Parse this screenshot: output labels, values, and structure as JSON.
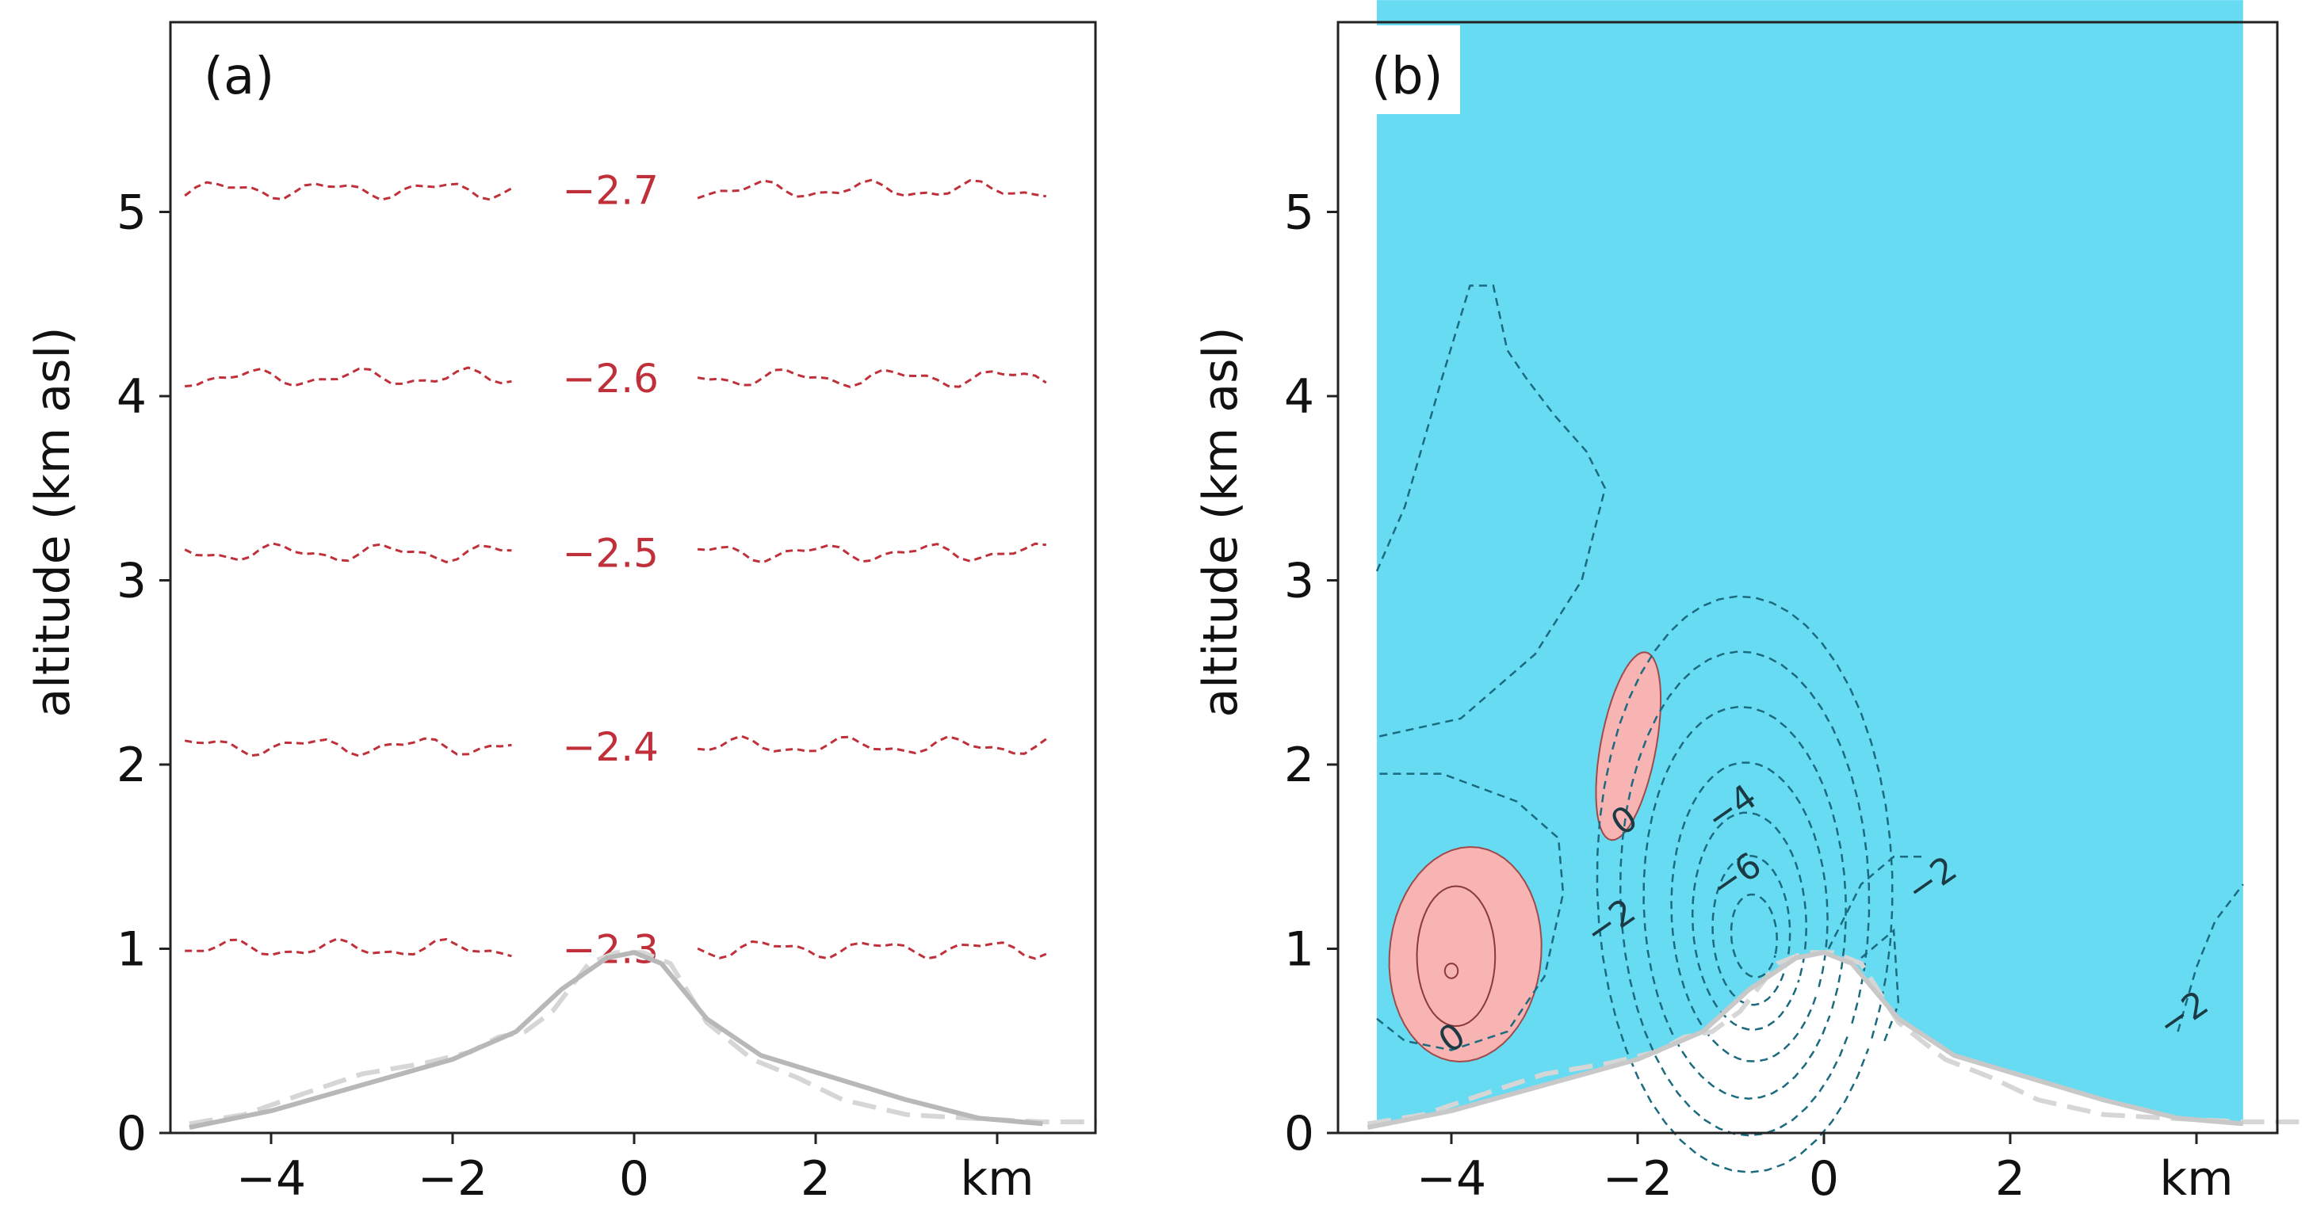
{
  "chart_data": [
    {
      "panel": "(a)",
      "type": "contour",
      "ylabel": "altitude (km asl)",
      "xlabel": "km",
      "xlim": [
        -5,
        5.2
      ],
      "ylim": [
        0,
        6
      ],
      "xticks": [
        -4,
        -2,
        0,
        2
      ],
      "xtick_labels": [
        "−4",
        "−2",
        "0",
        "2"
      ],
      "yticks": [
        0,
        1,
        2,
        3,
        4,
        5
      ],
      "ytick_labels": [
        "0",
        "1",
        "2",
        "3",
        "4",
        "5"
      ],
      "contour_color": "#c0303a",
      "contours": [
        {
          "label": "−2.3",
          "level": -2.3,
          "alt": 1.0
        },
        {
          "label": "−2.4",
          "level": -2.4,
          "alt": 2.1
        },
        {
          "label": "−2.5",
          "level": -2.5,
          "alt": 3.15
        },
        {
          "label": "−2.6",
          "level": -2.6,
          "alt": 4.1
        },
        {
          "label": "−2.7",
          "level": -2.7,
          "alt": 5.12
        }
      ],
      "terrain_color": "#b8b8b8",
      "terrain_smooth": [
        [
          -4.9,
          0.03
        ],
        [
          -4,
          0.12
        ],
        [
          -3,
          0.26
        ],
        [
          -2,
          0.4
        ],
        [
          -1.3,
          0.55
        ],
        [
          -0.8,
          0.78
        ],
        [
          -0.3,
          0.95
        ],
        [
          0,
          0.98
        ],
        [
          0.3,
          0.92
        ],
        [
          0.8,
          0.62
        ],
        [
          1.4,
          0.42
        ],
        [
          2.2,
          0.3
        ],
        [
          3,
          0.18
        ],
        [
          3.8,
          0.08
        ],
        [
          4.5,
          0.05
        ]
      ],
      "terrain_raw": [
        [
          -4.9,
          0.05
        ],
        [
          -4.3,
          0.1
        ],
        [
          -3.6,
          0.22
        ],
        [
          -3,
          0.32
        ],
        [
          -2.3,
          0.38
        ],
        [
          -1.8,
          0.44
        ],
        [
          -1.5,
          0.52
        ],
        [
          -1.2,
          0.55
        ],
        [
          -0.9,
          0.66
        ],
        [
          -0.5,
          0.92
        ],
        [
          -0.2,
          0.98
        ],
        [
          0.1,
          0.98
        ],
        [
          0.4,
          0.92
        ],
        [
          0.8,
          0.6
        ],
        [
          1.3,
          0.4
        ],
        [
          1.8,
          0.3
        ],
        [
          2.3,
          0.18
        ],
        [
          3,
          0.1
        ],
        [
          3.7,
          0.08
        ],
        [
          4.5,
          0.06
        ],
        [
          5.1,
          0.06
        ]
      ]
    },
    {
      "panel": "(b)",
      "type": "contour",
      "ylabel": "altitude (km asl)",
      "xlabel": "km",
      "xlim": [
        -5,
        5.2
      ],
      "ylim": [
        0,
        6
      ],
      "xticks": [
        -4,
        -2,
        0,
        2
      ],
      "xtick_labels": [
        "−4",
        "−2",
        "0",
        "2"
      ],
      "yticks": [
        0,
        1,
        2,
        3,
        4,
        5
      ],
      "ytick_labels": [
        "0",
        "1",
        "2",
        "3",
        "4",
        "5"
      ],
      "negative_fill_color": "#67dbf2",
      "positive_fill_color": "#f8b3b3",
      "contour_color": "#1b6a7e",
      "contour_labels": [
        {
          "label": "0",
          "x": -2.15,
          "y": 1.7
        },
        {
          "label": "−4",
          "x": -1.0,
          "y": 1.77
        },
        {
          "label": "−6",
          "x": -0.95,
          "y": 1.4
        },
        {
          "label": "−2",
          "x": -2.3,
          "y": 1.15
        },
        {
          "label": "−2",
          "x": 1.15,
          "y": 1.38
        },
        {
          "label": "0",
          "x": -4.0,
          "y": 0.52
        },
        {
          "label": "−2",
          "x": 3.85,
          "y": 0.65
        }
      ],
      "terrain_color": "#c8c8c8",
      "terrain_smooth": [
        [
          -4.9,
          0.03
        ],
        [
          -4,
          0.12
        ],
        [
          -3,
          0.26
        ],
        [
          -2,
          0.4
        ],
        [
          -1.3,
          0.55
        ],
        [
          -0.8,
          0.78
        ],
        [
          -0.3,
          0.95
        ],
        [
          0,
          0.98
        ],
        [
          0.3,
          0.92
        ],
        [
          0.8,
          0.62
        ],
        [
          1.4,
          0.42
        ],
        [
          2.2,
          0.3
        ],
        [
          3,
          0.18
        ],
        [
          3.8,
          0.08
        ],
        [
          4.5,
          0.05
        ]
      ],
      "terrain_raw": [
        [
          -4.9,
          0.05
        ],
        [
          -4.3,
          0.1
        ],
        [
          -3.6,
          0.22
        ],
        [
          -3,
          0.32
        ],
        [
          -2.3,
          0.38
        ],
        [
          -1.8,
          0.44
        ],
        [
          -1.5,
          0.52
        ],
        [
          -1.2,
          0.55
        ],
        [
          -0.9,
          0.66
        ],
        [
          -0.5,
          0.92
        ],
        [
          -0.2,
          0.98
        ],
        [
          0.1,
          0.98
        ],
        [
          0.4,
          0.92
        ],
        [
          0.8,
          0.6
        ],
        [
          1.3,
          0.4
        ],
        [
          1.8,
          0.3
        ],
        [
          2.3,
          0.18
        ],
        [
          3,
          0.1
        ],
        [
          3.7,
          0.08
        ],
        [
          4.5,
          0.06
        ],
        [
          5.1,
          0.06
        ]
      ]
    }
  ]
}
